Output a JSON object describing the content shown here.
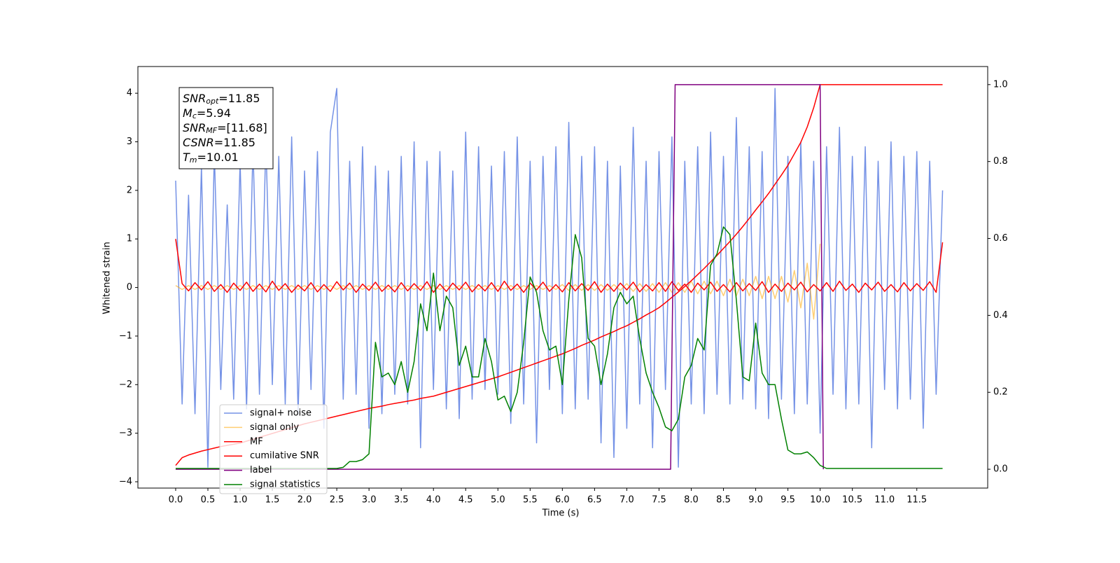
{
  "chart_data": {
    "type": "line",
    "xlabel": "Time (s)",
    "ylabel": "Whitened strain",
    "xlim": [
      -0.586,
      12.6
    ],
    "ylim": [
      -4.13,
      4.55
    ],
    "y2lim": [
      -0.049,
      1.047
    ],
    "xticks": [
      {
        "value": 0,
        "label": "0.0"
      },
      0.5,
      {
        "value": 1,
        "label": "1.0"
      },
      1.5,
      {
        "value": 2,
        "label": "2.0"
      },
      2.5,
      {
        "value": 3,
        "label": "3.0"
      },
      3.5,
      {
        "value": 4,
        "label": "4.0"
      },
      4.5,
      {
        "value": 5,
        "label": "5.0"
      },
      5.5,
      {
        "value": 6,
        "label": "6.0"
      },
      6.5,
      {
        "value": 7,
        "label": "7.0"
      },
      7.5,
      {
        "value": 8,
        "label": "8.0"
      },
      8.5,
      {
        "value": 9,
        "label": "9.0"
      },
      9.5,
      {
        "value": 10,
        "label": "10.0"
      },
      10.5,
      {
        "value": 11,
        "label": "11.0"
      },
      11.5
    ],
    "yticks": [
      {
        "value": -4,
        "label": "−4"
      },
      {
        "value": -3,
        "label": "−3"
      },
      {
        "value": -2,
        "label": "−2"
      },
      {
        "value": -1,
        "label": "−1"
      },
      0,
      1,
      2,
      3,
      4
    ],
    "y2ticks": [
      {
        "value": 0,
        "label": "0.0"
      },
      0.2,
      0.4,
      0.6,
      0.8,
      {
        "value": 1,
        "label": "1.0"
      }
    ],
    "legend": "lower left",
    "annotation": [
      {
        "main": "SNR",
        "sub": "opt",
        "rest": "=11.85"
      },
      {
        "main": "M",
        "sub": "c",
        "rest": "=5.94"
      },
      {
        "main": "SNR",
        "sub": "MF",
        "rest": "=[11.68]"
      },
      {
        "main": "CSNR",
        "sub": null,
        "rest": "=11.85"
      },
      {
        "main": "T",
        "sub": "m",
        "rest": "=10.01"
      }
    ],
    "x": [
      0,
      0.1,
      0.2,
      0.3,
      0.4,
      0.5,
      0.6,
      0.7,
      0.8,
      0.9,
      1,
      1.1,
      1.2,
      1.3,
      1.4,
      1.5,
      1.6,
      1.7,
      1.8,
      1.9,
      2,
      2.1,
      2.2,
      2.3,
      2.4,
      2.5,
      2.6,
      2.7,
      2.8,
      2.9,
      3,
      3.1,
      3.2,
      3.3,
      3.4,
      3.5,
      3.6,
      3.7,
      3.8,
      3.9,
      4,
      4.1,
      4.2,
      4.3,
      4.4,
      4.5,
      4.6,
      4.7,
      4.8,
      4.9,
      5,
      5.1,
      5.2,
      5.3,
      5.4,
      5.5,
      5.6,
      5.7,
      5.8,
      5.9,
      6,
      6.1,
      6.2,
      6.3,
      6.4,
      6.5,
      6.6,
      6.7,
      6.8,
      6.9,
      7,
      7.1,
      7.2,
      7.3,
      7.4,
      7.5,
      7.6,
      7.7,
      7.8,
      7.9,
      8,
      8.1,
      8.2,
      8.3,
      8.4,
      8.5,
      8.6,
      8.7,
      8.8,
      8.9,
      9,
      9.1,
      9.2,
      9.3,
      9.4,
      9.5,
      9.6,
      9.7,
      9.8,
      9.9,
      10,
      10.1,
      10.2,
      10.3,
      10.4,
      10.5,
      10.6,
      10.7,
      10.8,
      10.9,
      11,
      11.1,
      11.2,
      11.3,
      11.4,
      11.5,
      11.6,
      11.7,
      11.8,
      11.9
    ],
    "series": [
      {
        "name": "signal+ noise",
        "color": "#7592e6",
        "values": [
          2.2,
          -2.4,
          1.9,
          -2.6,
          2.5,
          -3.7,
          2.8,
          -2.1,
          1.7,
          -2.3,
          2.6,
          -2.5,
          2.9,
          -2.2,
          3.0,
          -2.0,
          2.7,
          -2.4,
          3.1,
          -2.6,
          2.4,
          -2.1,
          2.8,
          -2.9,
          3.2,
          4.1,
          -2.3,
          2.6,
          -2.2,
          2.9,
          -2.9,
          2.5,
          -2.6,
          2.4,
          -2.2,
          2.7,
          -2.4,
          3.0,
          -3.3,
          2.6,
          -2.1,
          2.8,
          -2.5,
          2.4,
          -2.7,
          3.2,
          -2.3,
          2.9,
          -2.1,
          2.5,
          -2.2,
          2.8,
          -2.8,
          3.1,
          -2.4,
          2.6,
          -3.2,
          2.7,
          -2.1,
          2.9,
          -2.6,
          3.4,
          -2.5,
          2.7,
          -2.3,
          2.9,
          -3.2,
          2.6,
          -3.5,
          2.5,
          -2.9,
          3.3,
          -2.4,
          2.6,
          -3.3,
          2.8,
          -2.1,
          3.1,
          -3.7,
          2.6,
          -2.4,
          2.9,
          -2.6,
          3.2,
          -2.2,
          2.7,
          -2.4,
          3.5,
          -2.3,
          2.9,
          -2.5,
          2.8,
          -2.7,
          4.1,
          -2.3,
          2.7,
          -2.6,
          3.0,
          -2.4,
          2.6,
          -3.0,
          2.9,
          -2.2,
          3.3,
          -2.5,
          2.7,
          -2.4,
          2.9,
          -3.3,
          2.6,
          -2.1,
          3.0,
          -2.5,
          2.7,
          -2.3,
          2.8,
          -2.9,
          2.6,
          -2.2,
          2.0
        ]
      },
      {
        "name": "signal only",
        "color": "#ffa500",
        "values": [
          0.04,
          -0.04,
          0.04,
          -0.04,
          0.04,
          -0.04,
          0.04,
          -0.04,
          0.04,
          -0.04,
          0.04,
          -0.04,
          0.04,
          -0.04,
          0.04,
          -0.04,
          0.04,
          -0.04,
          0.04,
          -0.04,
          0.04,
          -0.04,
          0.04,
          -0.04,
          0.04,
          -0.04,
          0.04,
          -0.04,
          0.04,
          -0.04,
          0.04,
          -0.04,
          0.04,
          -0.04,
          0.04,
          -0.04,
          0.04,
          -0.04,
          0.04,
          -0.04,
          0.04,
          -0.04,
          0.04,
          -0.04,
          0.04,
          -0.04,
          0.04,
          -0.04,
          0.04,
          -0.04,
          0.04,
          -0.04,
          0.04,
          -0.04,
          0.04,
          -0.04,
          0.04,
          -0.04,
          0.04,
          -0.04,
          0.06,
          -0.06,
          0.06,
          -0.06,
          0.06,
          -0.06,
          0.06,
          -0.06,
          0.06,
          -0.06,
          0.08,
          -0.08,
          0.08,
          -0.08,
          0.08,
          -0.1,
          0.1,
          -0.1,
          0.1,
          -0.1,
          0.13,
          -0.13,
          0.13,
          -0.13,
          0.13,
          -0.17,
          0.17,
          -0.17,
          0.17,
          -0.17,
          0.23,
          -0.23,
          0.23,
          -0.23,
          0.23,
          -0.3,
          0.35,
          -0.42,
          0.5,
          -0.65,
          0.9,
          null,
          null,
          null,
          null,
          null,
          null,
          null,
          null,
          null,
          null,
          null,
          null,
          null,
          null,
          null,
          null,
          null,
          null,
          null
        ]
      },
      {
        "name": "MF",
        "color": "#ff0000",
        "values": [
          1.0,
          0.08,
          -0.07,
          0.1,
          -0.05,
          0.12,
          -0.08,
          0.06,
          -0.1,
          0.09,
          -0.06,
          0.11,
          -0.08,
          0.07,
          -0.09,
          0.13,
          -0.06,
          0.08,
          -0.1,
          0.05,
          -0.07,
          0.1,
          -0.09,
          0.06,
          -0.08,
          0.12,
          -0.05,
          0.09,
          -0.1,
          0.07,
          -0.06,
          0.11,
          -0.08,
          0.05,
          -0.09,
          0.1,
          -0.07,
          0.08,
          -0.06,
          0.12,
          -0.1,
          0.07,
          -0.08,
          0.09,
          -0.05,
          0.11,
          -0.09,
          0.06,
          -0.07,
          0.1,
          -0.08,
          0.13,
          -0.06,
          0.07,
          -0.1,
          0.09,
          -0.05,
          0.11,
          -0.08,
          0.06,
          -0.09,
          0.1,
          -0.07,
          0.08,
          -0.06,
          0.12,
          -0.1,
          0.07,
          -0.08,
          0.09,
          -0.05,
          0.11,
          -0.09,
          0.06,
          -0.07,
          0.1,
          -0.08,
          0.12,
          -0.06,
          0.07,
          -0.1,
          0.09,
          -0.05,
          0.11,
          -0.08,
          0.06,
          -0.09,
          0.1,
          -0.07,
          0.08,
          -0.06,
          0.12,
          -0.1,
          0.07,
          -0.08,
          0.09,
          -0.05,
          0.11,
          -0.09,
          0.06,
          -0.07,
          0.1,
          -0.08,
          0.13,
          -0.06,
          0.07,
          -0.1,
          0.09,
          -0.05,
          0.11,
          -0.08,
          0.06,
          -0.09,
          0.1,
          -0.07,
          0.08,
          -0.06,
          0.12,
          -0.1,
          0.93
        ]
      },
      {
        "name": "cumilative SNR",
        "color": "#ff0000",
        "axis": "y2",
        "values": [
          0.01,
          0.03,
          0.037,
          0.042,
          0.047,
          0.051,
          0.055,
          0.059,
          0.062,
          0.065,
          0.068,
          0.073,
          0.078,
          0.083,
          0.088,
          0.093,
          0.098,
          0.103,
          0.108,
          0.113,
          0.118,
          0.122,
          0.126,
          0.13,
          0.134,
          0.138,
          0.142,
          0.146,
          0.15,
          0.154,
          0.158,
          0.161,
          0.164,
          0.168,
          0.171,
          0.174,
          0.177,
          0.18,
          0.184,
          0.187,
          0.19,
          0.195,
          0.2,
          0.205,
          0.21,
          0.215,
          0.22,
          0.225,
          0.23,
          0.235,
          0.24,
          0.246,
          0.252,
          0.258,
          0.264,
          0.27,
          0.276,
          0.282,
          0.288,
          0.294,
          0.3,
          0.307,
          0.314,
          0.322,
          0.329,
          0.336,
          0.344,
          0.351,
          0.358,
          0.366,
          0.373,
          0.382,
          0.391,
          0.401,
          0.41,
          0.42,
          0.433,
          0.447,
          0.461,
          0.475,
          0.49,
          0.506,
          0.522,
          0.539,
          0.556,
          0.574,
          0.592,
          0.611,
          0.631,
          0.652,
          0.674,
          0.695,
          0.717,
          0.741,
          0.765,
          0.79,
          0.82,
          0.85,
          0.89,
          0.94,
          1.0,
          1.0,
          1.0,
          1.0,
          1.0,
          1.0,
          1.0,
          1.0,
          1.0,
          1.0,
          1.0,
          1.0,
          1.0,
          1.0,
          1.0,
          1.0,
          1.0,
          1.0,
          1.0,
          1.0
        ]
      },
      {
        "name": "label",
        "color": "#800080",
        "axis": "y2",
        "x": [
          0,
          7.68,
          7.75,
          10.0,
          10.05
        ],
        "values": [
          0,
          0,
          1,
          1,
          0
        ]
      },
      {
        "name": "signal statistics",
        "color": "#008000",
        "axis": "y2",
        "values": [
          0.002,
          0.002,
          0.002,
          0.002,
          0.002,
          0.002,
          0.002,
          0.002,
          0.002,
          0.002,
          0.002,
          0.002,
          0.002,
          0.002,
          0.002,
          0.002,
          0.002,
          0.002,
          0.002,
          0.002,
          0.002,
          0.002,
          0.002,
          0.002,
          0.002,
          0.002,
          0.005,
          0.02,
          0.02,
          0.025,
          0.04,
          0.33,
          0.24,
          0.25,
          0.22,
          0.28,
          0.2,
          0.28,
          0.43,
          0.36,
          0.51,
          0.36,
          0.45,
          0.42,
          0.27,
          0.32,
          0.24,
          0.24,
          0.34,
          0.28,
          0.18,
          0.19,
          0.15,
          0.2,
          0.33,
          0.5,
          0.46,
          0.36,
          0.31,
          0.32,
          0.22,
          0.44,
          0.61,
          0.55,
          0.34,
          0.32,
          0.22,
          0.3,
          0.42,
          0.46,
          0.43,
          0.45,
          0.34,
          0.25,
          0.2,
          0.16,
          0.11,
          0.1,
          0.13,
          0.24,
          0.27,
          0.34,
          0.31,
          0.53,
          0.56,
          0.63,
          0.61,
          0.44,
          0.24,
          0.23,
          0.38,
          0.25,
          0.22,
          0.22,
          0.13,
          0.05,
          0.04,
          0.04,
          0.045,
          0.03,
          0.01,
          0.002,
          0.002,
          0.002,
          0.002,
          0.002,
          0.002,
          0.002,
          0.002,
          0.002,
          0.002,
          0.002,
          0.002,
          0.002,
          0.002,
          0.002,
          0.002,
          0.002,
          0.002,
          0.002
        ]
      }
    ]
  }
}
